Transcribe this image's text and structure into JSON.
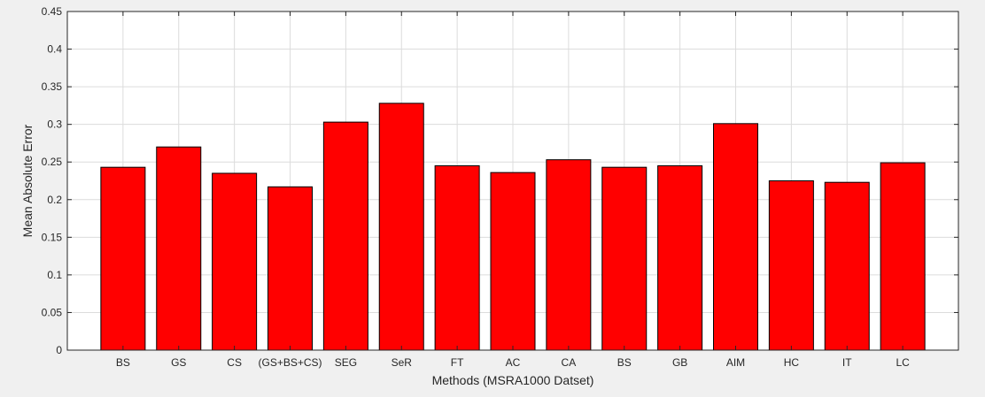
{
  "chart_data": {
    "type": "bar",
    "title": "",
    "xlabel": "Methods (MSRA1000 Datset)",
    "ylabel": "Mean Absolute Error",
    "categories": [
      "BS",
      "GS",
      "CS",
      "(GS+BS+CS)",
      "SEG",
      "SeR",
      "FT",
      "AC",
      "CA",
      "BS",
      "GB",
      "AIM",
      "HC",
      "IT",
      "LC"
    ],
    "values": [
      0.243,
      0.27,
      0.235,
      0.217,
      0.303,
      0.328,
      0.245,
      0.236,
      0.253,
      0.243,
      0.245,
      0.301,
      0.225,
      0.223,
      0.249
    ],
    "ylim": [
      0,
      0.45
    ],
    "yticks": [
      "0",
      "0.05",
      "0.1",
      "0.15",
      "0.2",
      "0.25",
      "0.3",
      "0.35",
      "0.4",
      "0.45"
    ],
    "grid": true,
    "colors": {
      "bar": "#ff0000",
      "bar_edge": "#000000",
      "plot_bg": "#ffffff",
      "figure_bg": "#f0f0f0",
      "grid": "#dcdcdc",
      "axis": "#262626"
    }
  }
}
